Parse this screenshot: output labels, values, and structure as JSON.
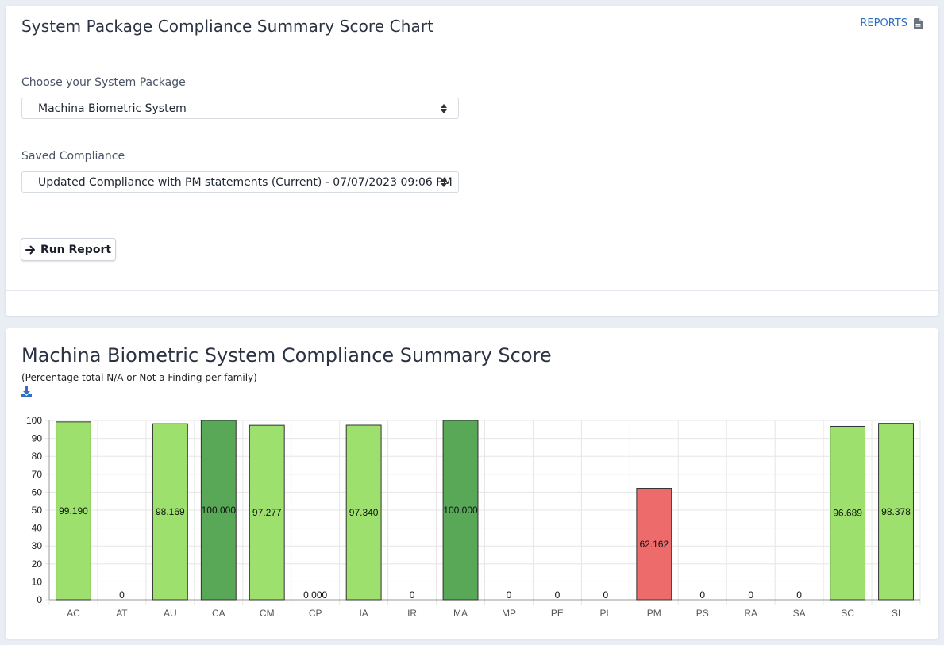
{
  "header": {
    "title": "System Package Compliance Summary Score Chart",
    "reports_label": "REPORTS",
    "reports_icon": "document-icon"
  },
  "form": {
    "package_label": "Choose your System Package",
    "package_value": "Machina Biometric System",
    "compliance_label": "Saved Compliance",
    "compliance_value": "Updated Compliance with PM statements (Current) - 07/07/2023 09:06 PM",
    "run_label": "Run Report",
    "run_icon": "arrow-right-icon"
  },
  "chart_section": {
    "title": "Machina Biometric System Compliance Summary Score",
    "subtitle": "(Percentage total N/A or Not a Finding per family)",
    "download_icon": "download-icon"
  },
  "colors": {
    "accent": "#2f6fc4",
    "bar_light_green": "#9de06e",
    "bar_dark_green": "#58a858",
    "bar_red": "#ee6b6b"
  },
  "chart_data": {
    "type": "bar",
    "title": "Machina Biometric System Compliance Summary Score",
    "subtitle": "(Percentage total N/A or Not a Finding per family)",
    "xlabel": "",
    "ylabel": "",
    "ylim": [
      0,
      100
    ],
    "yticks": [
      0,
      10,
      20,
      30,
      40,
      50,
      60,
      70,
      80,
      90,
      100
    ],
    "grid": true,
    "categories": [
      "AC",
      "AT",
      "AU",
      "CA",
      "CM",
      "CP",
      "IA",
      "IR",
      "MA",
      "MP",
      "PE",
      "PL",
      "PM",
      "PS",
      "RA",
      "SA",
      "SC",
      "SI"
    ],
    "values": [
      99.19,
      0,
      98.169,
      100,
      97.277,
      0,
      97.34,
      0,
      100,
      0,
      0,
      0,
      62.162,
      0,
      0,
      0,
      96.689,
      98.378
    ],
    "labels": [
      "99.190",
      "0",
      "98.169",
      "100.000",
      "97.277",
      "0.000",
      "97.340",
      "0",
      "100.000",
      "0",
      "0",
      "0",
      "62.162",
      "0",
      "0",
      "0",
      "96.689",
      "98.378"
    ],
    "bar_colors": [
      "light-green",
      "none",
      "light-green",
      "dark-green",
      "light-green",
      "none",
      "light-green",
      "none",
      "dark-green",
      "none",
      "none",
      "none",
      "red",
      "none",
      "none",
      "none",
      "light-green",
      "light-green"
    ]
  }
}
